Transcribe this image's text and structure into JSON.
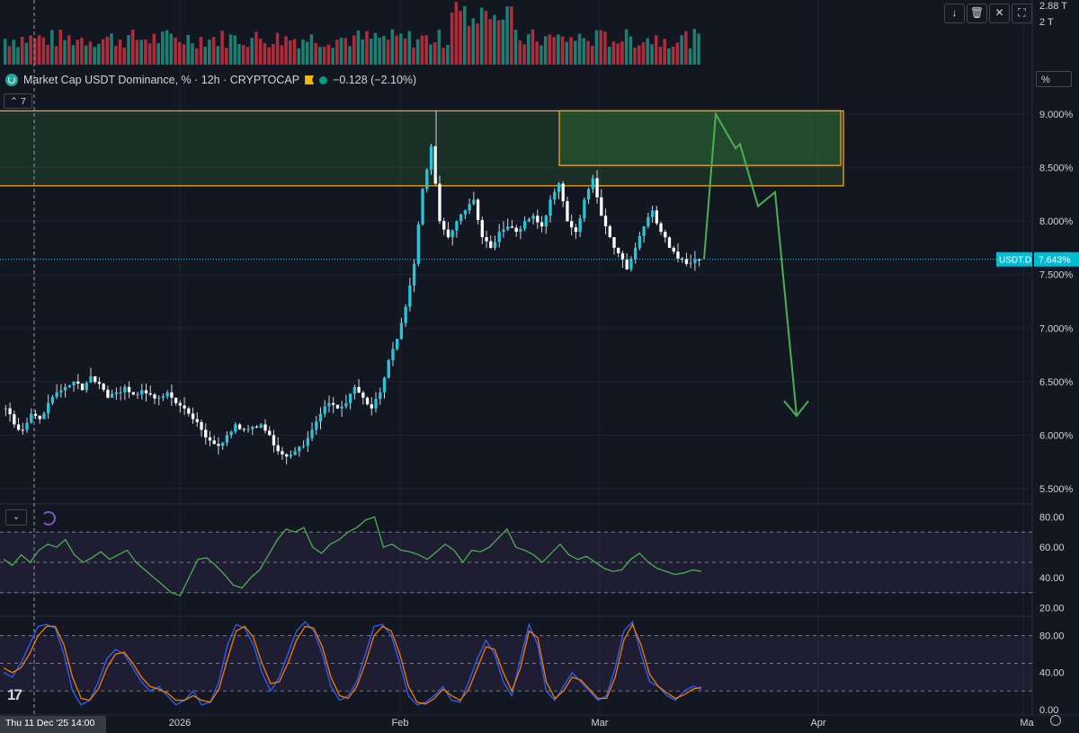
{
  "header": {
    "vol_label_top": "2.88 T",
    "vol_label_2t": "2 T",
    "buttons": [
      "↓",
      "🗑",
      "✕",
      "⛶"
    ],
    "pct_button": "%"
  },
  "legend": {
    "title": "Market Cap USDT Dominance, % · 12h · CRYPTOCAP",
    "change": "−0.128 (−2.10%)",
    "indicator_count": "7"
  },
  "chart_data": [
    {
      "type": "candlestick",
      "title": "Market Cap USDT Dominance, % · 12h · CRYPTOCAP",
      "y_unit": "%",
      "ylim": [
        5.5,
        9.1
      ],
      "y_ticks": [
        "9.000%",
        "8.500%",
        "8.000%",
        "7.500%",
        "7.000%",
        "6.500%",
        "6.000%",
        "5.500%"
      ],
      "x_ticks": [
        "2026",
        "Feb",
        "Mar",
        "Apr",
        "Ma"
      ],
      "crosshair_date": "Thu 11 Dec '25   14:00",
      "last_price_label": "USDT.D",
      "last_price": "7.643%",
      "close_path": [
        6.25,
        6.1,
        6.05,
        6.2,
        6.15,
        6.3,
        6.4,
        6.45,
        6.5,
        6.42,
        6.55,
        6.48,
        6.35,
        6.4,
        6.45,
        6.38,
        6.42,
        6.38,
        6.35,
        6.4,
        6.3,
        6.25,
        6.15,
        6.05,
        5.95,
        5.9,
        6.0,
        6.1,
        6.05,
        6.08,
        6.1,
        6.0,
        5.85,
        5.8,
        5.85,
        5.9,
        6.05,
        6.2,
        6.3,
        6.25,
        6.3,
        6.45,
        6.35,
        6.25,
        6.4,
        6.7,
        6.9,
        7.2,
        7.6,
        8.3,
        8.7,
        8.0,
        7.85,
        8.0,
        8.1,
        8.2,
        7.85,
        7.75,
        7.9,
        7.95,
        7.9,
        8.0,
        8.05,
        7.95,
        8.2,
        8.35,
        8.0,
        7.9,
        8.2,
        8.4,
        8.05,
        7.85,
        7.7,
        7.55,
        7.75,
        7.95,
        8.1,
        7.9,
        7.75,
        7.65,
        7.6,
        7.643
      ],
      "ohlc_note": "candles approximated from close path",
      "annotations": {
        "zone_large": {
          "price_low": 8.33,
          "price_high": 9.03
        },
        "zone_small": {
          "price_low": 8.52,
          "price_high": 9.03
        },
        "projection_path": [
          [
            7.643,
            0
          ],
          [
            9.0,
            1
          ],
          [
            8.7,
            2
          ],
          [
            8.15,
            3
          ],
          [
            8.28,
            4
          ],
          [
            6.2,
            5
          ],
          [
            6.3,
            6
          ]
        ]
      }
    },
    {
      "type": "line",
      "name": "",
      "ylim": [
        15,
        88
      ],
      "y_ticks": [
        "80.00",
        "60.00",
        "40.00",
        "20.00"
      ],
      "levels": [
        70,
        50,
        30
      ],
      "values": [
        52,
        48,
        55,
        50,
        58,
        62,
        60,
        65,
        55,
        50,
        53,
        57,
        52,
        55,
        58,
        50,
        45,
        40,
        35,
        30,
        28,
        40,
        52,
        53,
        48,
        42,
        35,
        33,
        40,
        45,
        55,
        65,
        72,
        70,
        73,
        60,
        56,
        62,
        65,
        70,
        73,
        78,
        80,
        60,
        62,
        58,
        57,
        55,
        52,
        57,
        62,
        58,
        50,
        58,
        57,
        60,
        66,
        72,
        60,
        58,
        55,
        50,
        56,
        62,
        55,
        52,
        54,
        50,
        46,
        44,
        45,
        52,
        56,
        50,
        46,
        44,
        42,
        43,
        45,
        44
      ],
      "last_value": 44
    },
    {
      "type": "line",
      "name": "",
      "ylim": [
        -5,
        100
      ],
      "y_ticks": [
        "80.00",
        "40.00",
        "0.00"
      ],
      "levels": [
        80,
        50,
        20
      ],
      "series": [
        {
          "name": "",
          "color": "#2962ff",
          "values": [
            40,
            35,
            50,
            70,
            90,
            92,
            88,
            60,
            20,
            5,
            10,
            30,
            55,
            65,
            60,
            45,
            30,
            20,
            25,
            15,
            5,
            10,
            20,
            5,
            8,
            30,
            70,
            92,
            88,
            70,
            40,
            20,
            35,
            60,
            85,
            95,
            85,
            60,
            25,
            10,
            15,
            30,
            60,
            90,
            92,
            80,
            50,
            15,
            5,
            8,
            15,
            25,
            10,
            8,
            30,
            55,
            75,
            60,
            30,
            15,
            55,
            92,
            70,
            20,
            10,
            25,
            40,
            30,
            20,
            10,
            15,
            45,
            85,
            95,
            60,
            30,
            25,
            15,
            10,
            20,
            25,
            22
          ]
        },
        {
          "name": "",
          "color": "#f57c00",
          "values": [
            45,
            40,
            45,
            60,
            80,
            90,
            90,
            70,
            35,
            12,
            10,
            22,
            45,
            60,
            62,
            50,
            35,
            25,
            22,
            18,
            10,
            10,
            15,
            10,
            8,
            22,
            55,
            85,
            90,
            78,
            50,
            28,
            30,
            50,
            75,
            90,
            88,
            68,
            35,
            15,
            12,
            25,
            50,
            80,
            90,
            85,
            60,
            25,
            8,
            6,
            12,
            22,
            15,
            10,
            22,
            45,
            68,
            65,
            40,
            20,
            45,
            85,
            78,
            30,
            12,
            20,
            35,
            32,
            22,
            12,
            12,
            35,
            75,
            92,
            70,
            38,
            25,
            18,
            12,
            16,
            22,
            24
          ]
        }
      ]
    }
  ]
}
